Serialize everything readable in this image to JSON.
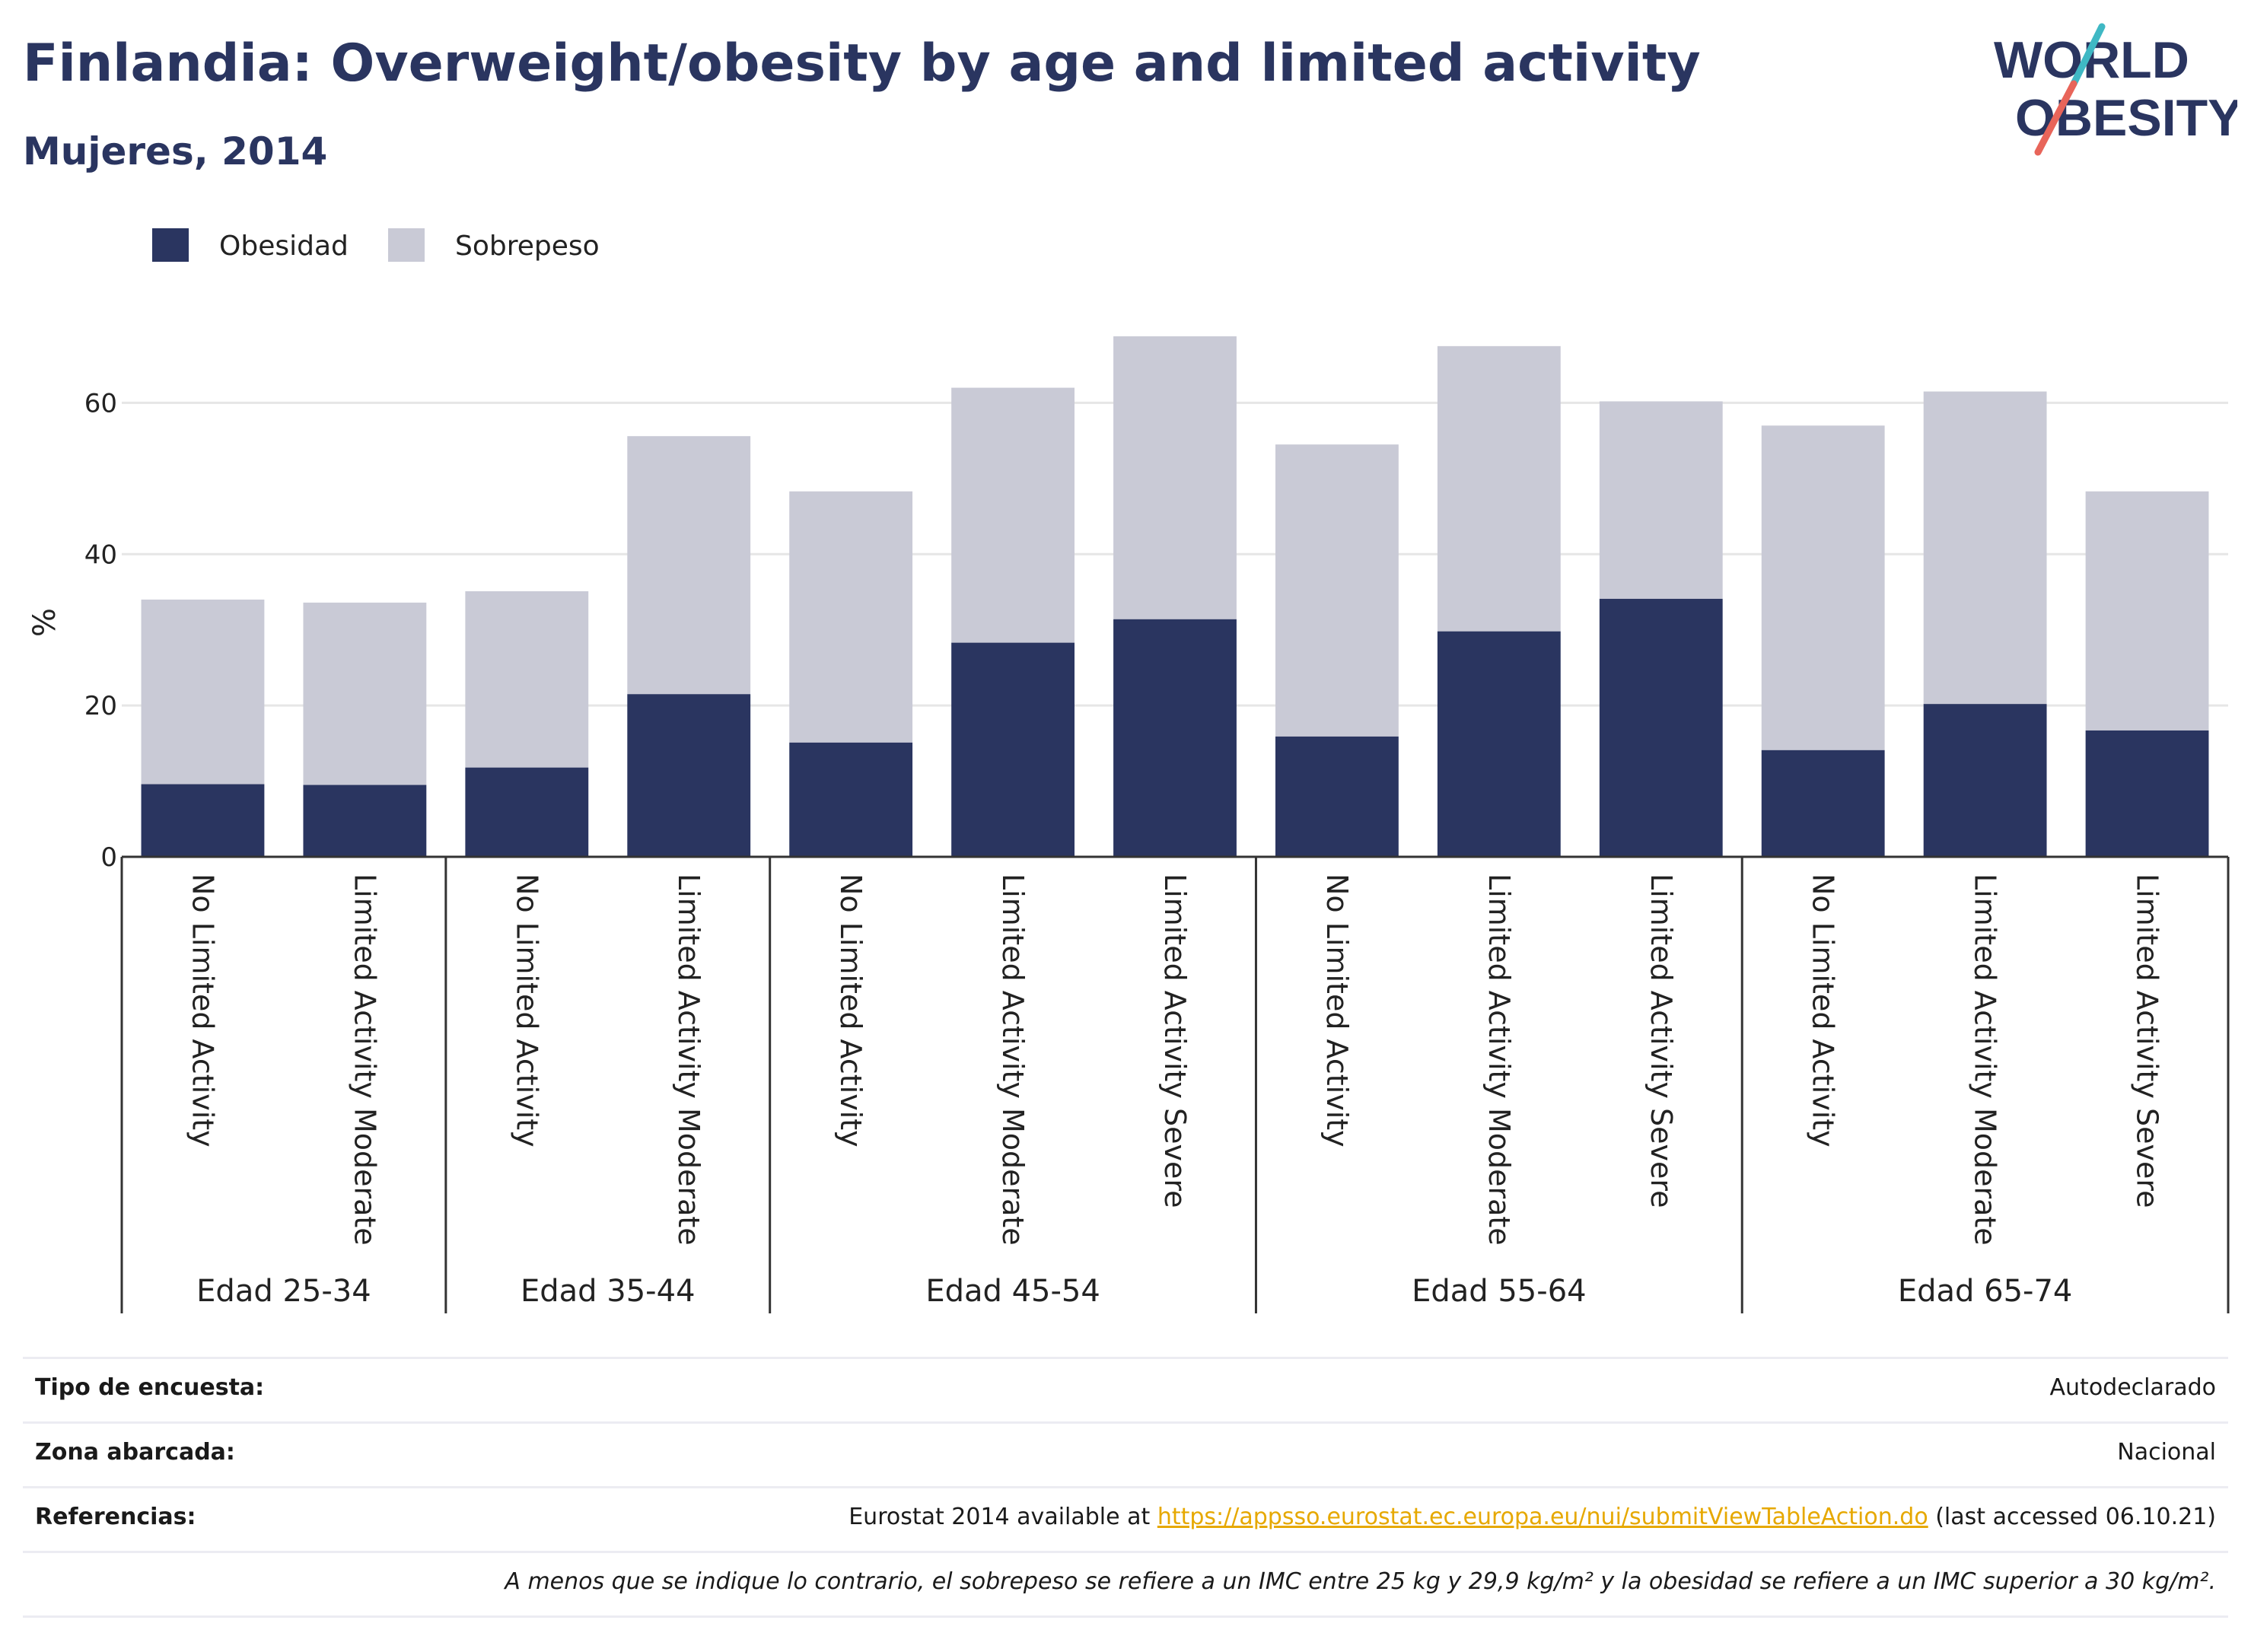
{
  "title": "Finlandia: Overweight/obesity by age and limited activity",
  "subtitle": "Mujeres, 2014",
  "logo": {
    "line1": "WORLD",
    "line2": "OBESITY",
    "text_color": "#2a3560",
    "accent_teal": "#3fb8c4",
    "accent_coral": "#e8655a"
  },
  "colors": {
    "obesity": "#2a3560",
    "overweight": "#c9cad6",
    "grid": "#e6e6e6",
    "axis": "#333333"
  },
  "chart_data": {
    "type": "bar",
    "stacked": true,
    "ylabel": "%",
    "ylim": [
      0,
      70
    ],
    "yticks": [
      0,
      20,
      40,
      60
    ],
    "grid": true,
    "legend_position": "top-left",
    "legend": [
      "Obesidad",
      "Sobrepeso"
    ],
    "categories": [
      "No Limited Activity",
      "Limited Activity Moderate",
      "No Limited Activity",
      "Limited Activity Moderate",
      "No Limited Activity",
      "Limited Activity Moderate",
      "Limited Activity Severe",
      "No Limited Activity",
      "Limited Activity Moderate",
      "Limited Activity Severe",
      "No Limited Activity",
      "Limited Activity Moderate",
      "Limited Activity Severe"
    ],
    "groups": [
      {
        "label": "Edad 25-34",
        "count": 2
      },
      {
        "label": "Edad 35-44",
        "count": 2
      },
      {
        "label": "Edad 45-54",
        "count": 3
      },
      {
        "label": "Edad 55-64",
        "count": 3
      },
      {
        "label": "Edad 65-74",
        "count": 3
      }
    ],
    "series": [
      {
        "name": "Obesidad",
        "values": [
          9.6,
          9.5,
          11.8,
          21.5,
          15.1,
          28.3,
          31.4,
          15.9,
          29.8,
          34.1,
          14.1,
          20.2,
          16.7
        ]
      },
      {
        "name": "Sobrepeso",
        "values": [
          24.4,
          24.1,
          23.3,
          34.1,
          33.2,
          33.7,
          37.4,
          38.6,
          37.7,
          26.1,
          42.9,
          41.3,
          31.6
        ]
      }
    ]
  },
  "meta": {
    "survey_label": "Tipo de encuesta:",
    "survey_value": "Autodeclarado",
    "area_label": "Zona abarcada:",
    "area_value": "Nacional",
    "ref_label": "Referencias:",
    "ref_prefix": "Eurostat 2014 available at ",
    "ref_link": "https://appsso.eurostat.ec.europa.eu/nui/submitViewTableAction.do",
    "ref_suffix": " (last accessed 06.10.21)",
    "note": "A menos que se indique lo contrario, el sobrepeso se refiere a un IMC entre 25 kg y 29,9 kg/m² y la obesidad se refiere a un IMC superior a 30 kg/m²."
  }
}
